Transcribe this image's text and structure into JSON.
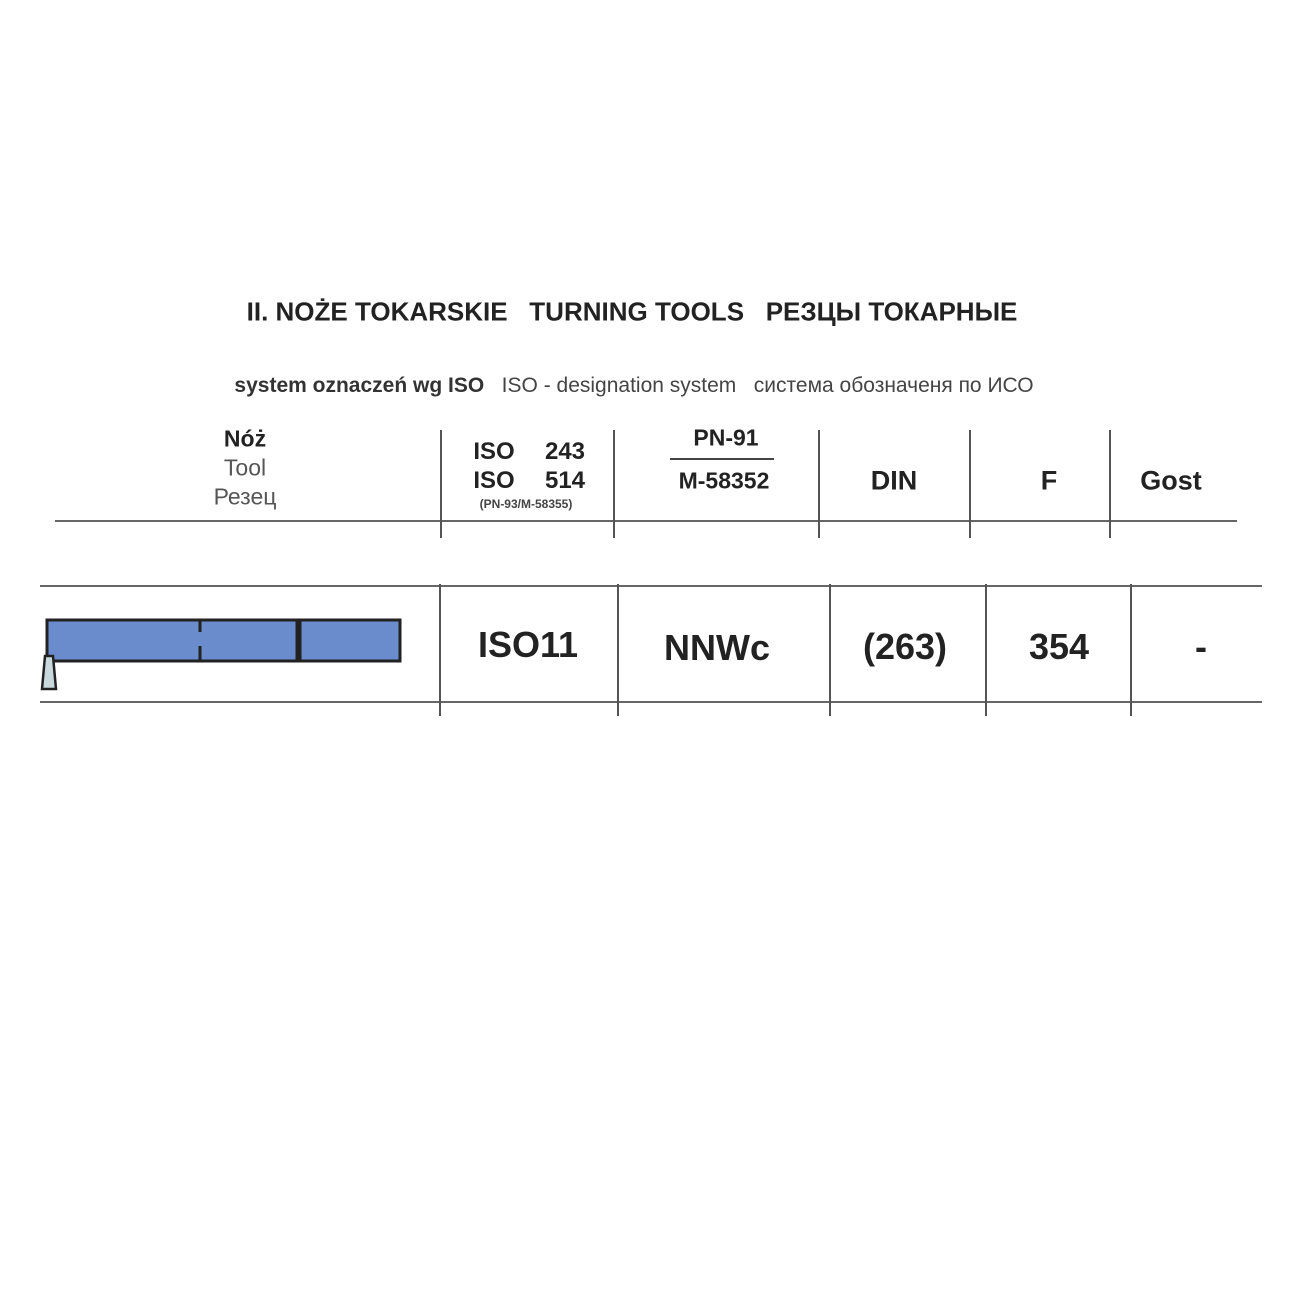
{
  "title": {
    "pl": "II. NOŻE TOKARSKIE",
    "en": "TURNING TOOLS",
    "ru": "РЕЗЦЫ ТОКАРНЫЕ"
  },
  "subtitle": {
    "pl": "system oznaczeń wg ISO",
    "en": "ISO - designation system",
    "ru": "система обозначеня по ИСО"
  },
  "header": {
    "tool": {
      "pl": "Nóż",
      "en": "Tool",
      "ru": "Резец"
    },
    "iso": {
      "line1_label": "ISO",
      "line1_num": "243",
      "line2_label": "ISO",
      "line2_num": "514",
      "note": "(PN-93/M-58355)"
    },
    "pn": {
      "top": "PN-91",
      "bottom": "M-58352"
    },
    "din": "DIN",
    "f": "F",
    "gost": "Gost"
  },
  "row": {
    "iso": "ISO11",
    "pn": "NNWc",
    "din": "(263)",
    "f": "354",
    "gost": "-"
  },
  "colors": {
    "tool_body": "#6a8ccc",
    "tool_tip": "#c8d8dc",
    "outline": "#222222"
  }
}
